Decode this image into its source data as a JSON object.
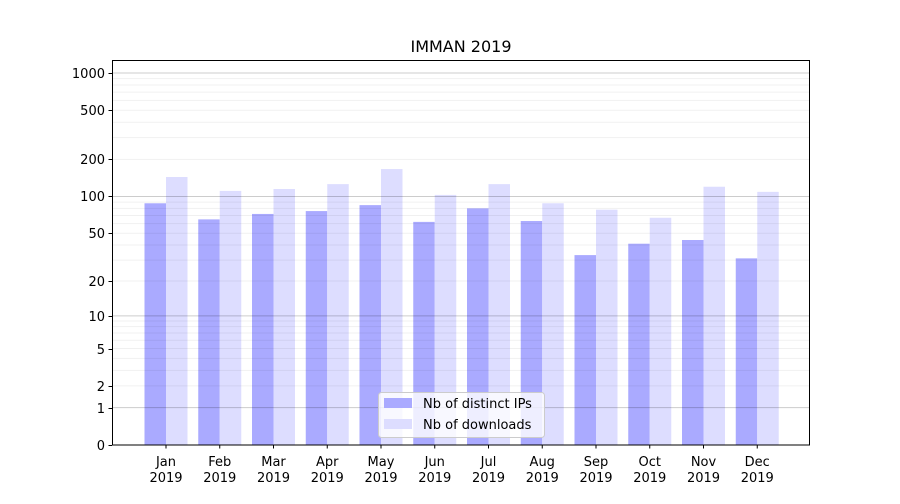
{
  "chart_data": {
    "type": "bar",
    "title": "IMMAN 2019",
    "xlabel": "",
    "ylabel": "",
    "yscale": "symlog (log10(1+y))",
    "ylim": [
      0,
      1250
    ],
    "yticks": [
      0,
      1,
      2,
      5,
      10,
      20,
      50,
      100,
      200,
      500,
      1000
    ],
    "ytick_labels": [
      "0",
      "1",
      "2",
      "5",
      "10",
      "20",
      "50",
      "100",
      "200",
      "500",
      "1000"
    ],
    "categories": [
      "Jan\n2019",
      "Feb\n2019",
      "Mar\n2019",
      "Apr\n2019",
      "May\n2019",
      "Jun\n2019",
      "Jul\n2019",
      "Aug\n2019",
      "Sep\n2019",
      "Oct\n2019",
      "Nov\n2019",
      "Dec\n2019"
    ],
    "category_lines": [
      [
        "Jan",
        "2019"
      ],
      [
        "Feb",
        "2019"
      ],
      [
        "Mar",
        "2019"
      ],
      [
        "Apr",
        "2019"
      ],
      [
        "May",
        "2019"
      ],
      [
        "Jun",
        "2019"
      ],
      [
        "Jul",
        "2019"
      ],
      [
        "Aug",
        "2019"
      ],
      [
        "Sep",
        "2019"
      ],
      [
        "Oct",
        "2019"
      ],
      [
        "Nov",
        "2019"
      ],
      [
        "Dec",
        "2019"
      ]
    ],
    "series": [
      {
        "name": "Nb of distinct IPs",
        "color": "#aaaaff",
        "values": [
          88,
          65,
          72,
          76,
          85,
          62,
          80,
          63,
          33,
          41,
          44,
          31
        ]
      },
      {
        "name": "Nb of downloads",
        "color": "#ddddff",
        "values": [
          144,
          111,
          115,
          126,
          167,
          103,
          126,
          88,
          78,
          67,
          120,
          109
        ]
      }
    ],
    "grid": true,
    "legend_position": "lower-center"
  }
}
